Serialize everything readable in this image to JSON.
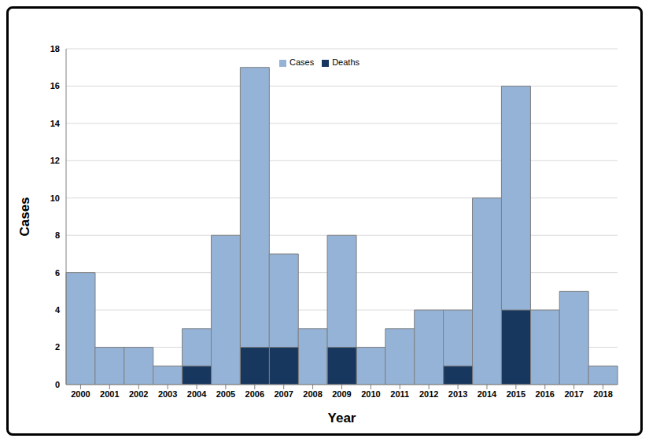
{
  "chart_data": {
    "type": "bar",
    "x_label": "Year",
    "y_label": "Cases",
    "categories": [
      "2000",
      "2001",
      "2002",
      "2003",
      "2004",
      "2005",
      "2006",
      "2007",
      "2008",
      "2009",
      "2010",
      "2011",
      "2012",
      "2013",
      "2014",
      "2015",
      "2016",
      "2017",
      "2018"
    ],
    "series": [
      {
        "name": "Cases",
        "color": "#95b3d7",
        "values": [
          6,
          2,
          2,
          1,
          3,
          8,
          17,
          7,
          3,
          8,
          2,
          3,
          4,
          4,
          10,
          16,
          4,
          5,
          1
        ]
      },
      {
        "name": "Deaths",
        "color": "#17375e",
        "values": [
          0,
          0,
          0,
          0,
          1,
          0,
          2,
          2,
          0,
          2,
          0,
          0,
          0,
          1,
          0,
          4,
          0,
          0,
          0
        ]
      }
    ],
    "ylim": [
      0,
      18
    ],
    "yticks": [
      0,
      2,
      4,
      6,
      8,
      10,
      12,
      14,
      16,
      18
    ],
    "grid": true,
    "legend": "top"
  }
}
